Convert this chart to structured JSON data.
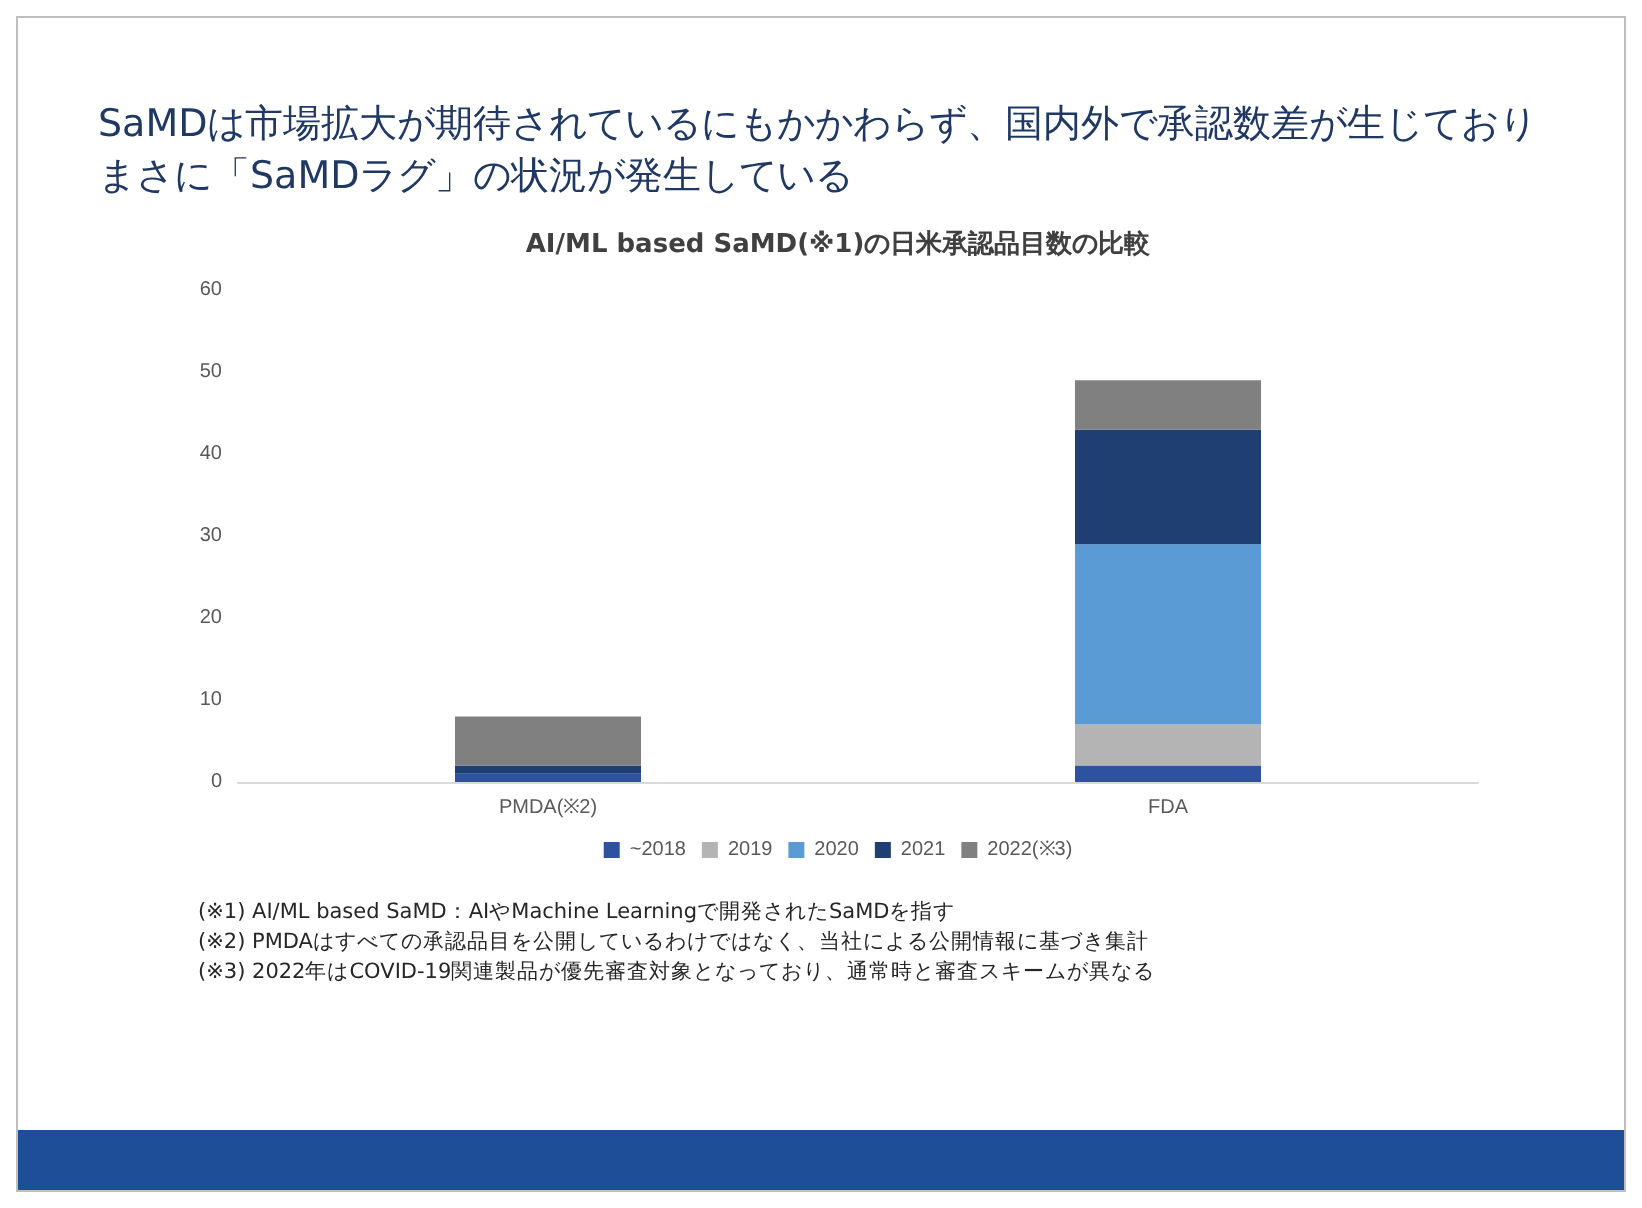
{
  "chart_data": {
    "type": "bar",
    "subtitle": "SaMDは市場拡大が期待されているにもかかわらず、国内外で承認数差が生じておりまさに「SaMDラグ」の状況が発生している",
    "title": "AI/ML based SaMD(※1)の日米承認品目数の比較",
    "categories": [
      "PMDA(※2)",
      "FDA"
    ],
    "stacked": true,
    "series": [
      {
        "name": "~2018",
        "color": "#2f52a0",
        "values": [
          1,
          2
        ]
      },
      {
        "name": "2019",
        "color": "#b4b4b4",
        "values": [
          0,
          5
        ]
      },
      {
        "name": "2020",
        "color": "#5b9bd5",
        "values": [
          0,
          22
        ]
      },
      {
        "name": "2021",
        "color": "#1f3f73",
        "values": [
          1,
          14
        ]
      },
      {
        "name": "2022(※3)",
        "color": "#808080",
        "values": [
          6,
          6
        ]
      }
    ],
    "ylim": [
      0,
      60
    ],
    "yticks": [
      0,
      10,
      20,
      30,
      40,
      50,
      60
    ],
    "grid": false,
    "legend": "bottom",
    "annotations": [
      "(※1) AI/ML based SaMD：AIやMachine Learningで開発されたSaMDを指す",
      "(※2) PMDAはすべての承認品目を公開しているわけではなく、当社による公開情報に基づき集計",
      "(※3) 2022年はCOVID-19関連製品が優先審査対象となっており、通常時と審査スキームが異なる"
    ]
  }
}
